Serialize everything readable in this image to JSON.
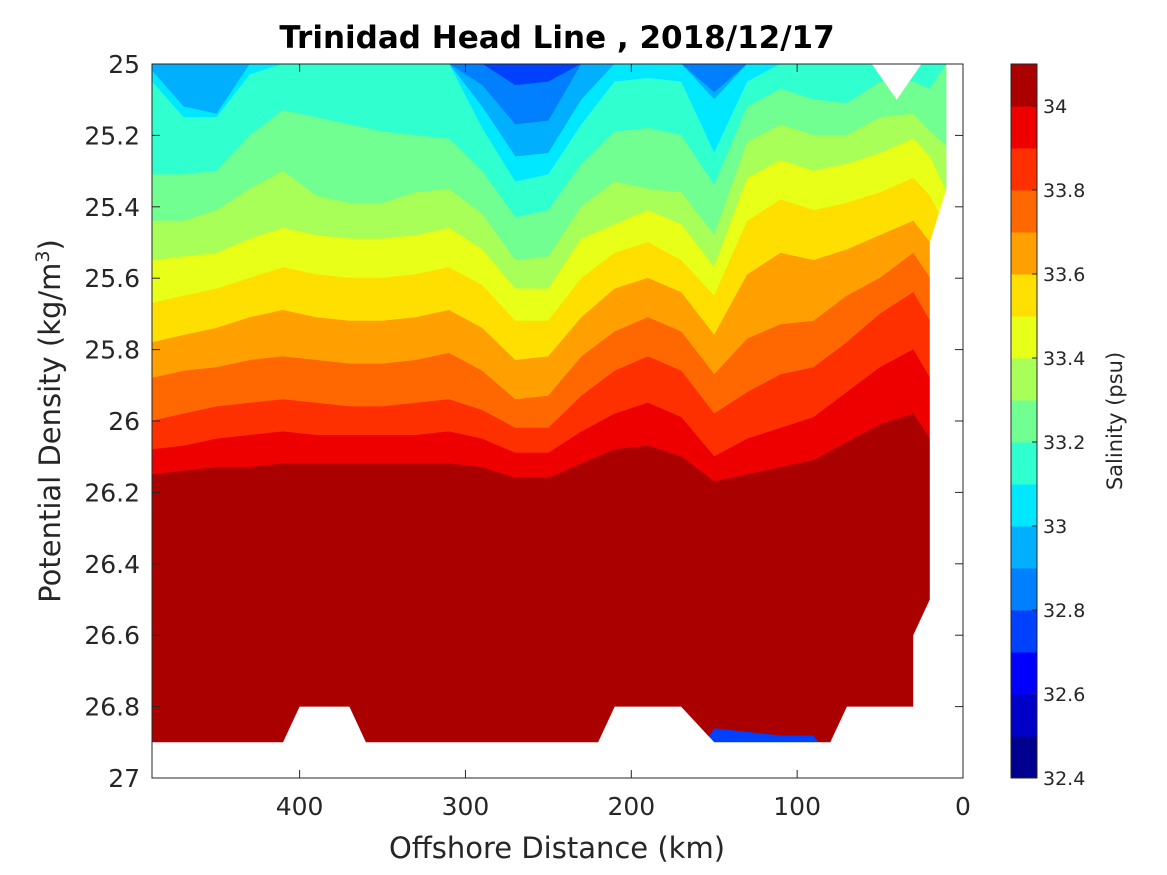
{
  "chart_data": {
    "type": "filled-contour",
    "title": "Trinidad Head Line , 2018/12/17",
    "xlabel": "Offshore Distance (km)",
    "ylabel": "Potential Density (kg/m",
    "ylabel_sup": "3",
    "ylabel_end": ")",
    "colorbar_label": "Salinity (psu)",
    "xlim": [
      489,
      0
    ],
    "ylim": [
      25.0,
      27.0
    ],
    "x_reversed": true,
    "y_reversed": true,
    "x_ticks": [
      400,
      300,
      200,
      100,
      0
    ],
    "x_tick_labels": [
      "400",
      "300",
      "200",
      "100",
      "0"
    ],
    "y_ticks": [
      25.0,
      25.2,
      25.4,
      25.6,
      25.8,
      26.0,
      26.2,
      26.4,
      26.6,
      26.8,
      27.0
    ],
    "y_tick_labels": [
      "25",
      "25.2",
      "25.4",
      "25.6",
      "25.8",
      "26",
      "26.2",
      "26.4",
      "26.6",
      "26.8",
      "27"
    ],
    "colorbar_ticks": [
      32.4,
      32.6,
      32.8,
      33.0,
      33.2,
      33.4,
      33.6,
      33.8,
      34.0
    ],
    "colorbar_tick_labels": [
      "32.4",
      "32.6",
      "32.8",
      "33",
      "33.2",
      "33.4",
      "33.6",
      "33.8",
      "34"
    ],
    "levels": [
      32.4,
      32.5,
      32.6,
      32.7,
      32.8,
      32.9,
      33.0,
      33.1,
      33.2,
      33.3,
      33.4,
      33.5,
      33.6,
      33.7,
      33.8,
      33.9,
      34.0,
      34.1
    ],
    "level_colors": [
      "#00008f",
      "#0000c8",
      "#0000ff",
      "#0040ff",
      "#0080ff",
      "#00b0ff",
      "#00e8ff",
      "#30ffd0",
      "#70ff90",
      "#a8ff58",
      "#e8ff18",
      "#ffdf00",
      "#ffa000",
      "#ff6800",
      "#ff3000",
      "#ee0000",
      "#aa0000"
    ],
    "contours": {
      "x": [
        489,
        470,
        450,
        430,
        410,
        390,
        370,
        350,
        330,
        310,
        290,
        270,
        250,
        230,
        210,
        190,
        170,
        150,
        130,
        110,
        90,
        70,
        50,
        30,
        20,
        10
      ],
      "boundaries": [
        {
          "value": 32.6,
          "depth": [
            25.0,
            25.0,
            25.0,
            25.0,
            25.0,
            25.0,
            25.0,
            25.0,
            25.0,
            25.0,
            25.0,
            25.06,
            25.05,
            25.0,
            25.0,
            25.0,
            25.0,
            25.0,
            25.0,
            25.0,
            25.0,
            25.0,
            25.0,
            25.0,
            25.0,
            25.0
          ]
        },
        {
          "value": 32.7,
          "depth": [
            25.0,
            25.0,
            25.0,
            25.0,
            25.0,
            25.0,
            25.0,
            25.0,
            25.0,
            25.0,
            25.06,
            25.17,
            25.16,
            25.0,
            25.0,
            25.0,
            25.0,
            25.08,
            25.0,
            25.0,
            25.0,
            25.0,
            25.0,
            25.0,
            25.0,
            25.0
          ]
        },
        {
          "value": 32.8,
          "depth": [
            25.02,
            25.12,
            25.14,
            25.0,
            25.0,
            25.0,
            25.0,
            25.0,
            25.0,
            25.0,
            25.12,
            25.26,
            25.25,
            25.1,
            25.0,
            25.0,
            25.0,
            25.1,
            25.0,
            25.0,
            25.0,
            25.0,
            25.0,
            25.0,
            25.0,
            25.0
          ]
        },
        {
          "value": 32.9,
          "depth": [
            25.05,
            25.15,
            25.15,
            25.03,
            25.0,
            25.0,
            25.0,
            25.0,
            25.0,
            25.0,
            25.18,
            25.33,
            25.31,
            25.17,
            25.05,
            25.04,
            25.05,
            25.25,
            25.05,
            25.0,
            25.0,
            25.0,
            25.0,
            25.0,
            25.0,
            25.0
          ]
        },
        {
          "value": 33.0,
          "depth": [
            25.31,
            25.31,
            25.3,
            25.2,
            25.13,
            25.15,
            25.17,
            25.19,
            25.2,
            25.21,
            25.3,
            25.43,
            25.41,
            25.28,
            25.19,
            25.18,
            25.2,
            25.34,
            25.12,
            25.07,
            25.1,
            25.11,
            25.05,
            25.05,
            25.07,
            25.0
          ]
        },
        {
          "value": 33.1,
          "depth": [
            25.44,
            25.44,
            25.41,
            25.35,
            25.3,
            25.37,
            25.39,
            25.39,
            25.36,
            25.35,
            25.42,
            25.55,
            25.54,
            25.4,
            25.33,
            25.35,
            25.36,
            25.48,
            25.22,
            25.17,
            25.2,
            25.2,
            25.15,
            25.14,
            25.19,
            25.23
          ]
        },
        {
          "value": 33.2,
          "depth": [
            25.55,
            25.54,
            25.53,
            25.49,
            25.46,
            25.48,
            25.49,
            25.49,
            25.48,
            25.46,
            25.52,
            25.63,
            25.63,
            25.49,
            25.45,
            25.41,
            25.45,
            25.57,
            25.32,
            25.27,
            25.3,
            25.28,
            25.25,
            25.21,
            25.26,
            25.36
          ]
        },
        {
          "value": 33.3,
          "depth": [
            25.67,
            25.65,
            25.63,
            25.6,
            25.57,
            25.59,
            25.6,
            25.6,
            25.59,
            25.57,
            25.62,
            25.72,
            25.72,
            25.6,
            25.53,
            25.5,
            25.55,
            25.65,
            25.44,
            25.38,
            25.41,
            25.39,
            25.36,
            25.32,
            25.37,
            25.46
          ]
        },
        {
          "value": 33.4,
          "depth": [
            25.78,
            25.76,
            25.74,
            25.71,
            25.69,
            25.71,
            25.72,
            25.72,
            25.71,
            25.69,
            25.74,
            25.83,
            25.82,
            25.71,
            25.63,
            25.6,
            25.64,
            25.76,
            25.59,
            25.53,
            25.55,
            25.52,
            25.48,
            25.44,
            25.5,
            25.58
          ]
        },
        {
          "value": 33.5,
          "depth": [
            25.88,
            25.86,
            25.85,
            25.83,
            25.82,
            25.83,
            25.84,
            25.84,
            25.83,
            25.81,
            25.86,
            25.94,
            25.93,
            25.82,
            25.75,
            25.71,
            25.75,
            25.87,
            25.77,
            25.73,
            25.72,
            25.65,
            25.6,
            25.53,
            25.6,
            25.7
          ]
        },
        {
          "value": 33.6,
          "depth": [
            26.0,
            25.98,
            25.96,
            25.95,
            25.94,
            25.95,
            25.96,
            25.96,
            25.95,
            25.94,
            25.97,
            26.02,
            26.02,
            25.93,
            25.86,
            25.82,
            25.86,
            25.98,
            25.92,
            25.87,
            25.85,
            25.78,
            25.7,
            25.64,
            25.72,
            25.82
          ]
        },
        {
          "value": 33.7,
          "depth": [
            26.08,
            26.07,
            26.05,
            26.04,
            26.03,
            26.04,
            26.04,
            26.04,
            26.04,
            26.03,
            26.05,
            26.09,
            26.09,
            26.03,
            25.98,
            25.95,
            25.99,
            26.1,
            26.05,
            26.02,
            25.99,
            25.92,
            25.85,
            25.8,
            25.88,
            25.98
          ]
        },
        {
          "value": 33.8,
          "depth": [
            26.15,
            26.14,
            26.13,
            26.13,
            26.12,
            26.12,
            26.12,
            26.12,
            26.12,
            26.12,
            26.13,
            26.16,
            26.16,
            26.12,
            26.08,
            26.07,
            26.1,
            26.17,
            26.15,
            26.13,
            26.11,
            26.06,
            26.01,
            25.98,
            26.05,
            26.12
          ]
        },
        {
          "value": 33.9,
          "depth": [
            26.24,
            26.23,
            26.22,
            26.22,
            26.22,
            26.22,
            26.22,
            26.23,
            26.24,
            26.25,
            26.26,
            26.27,
            26.26,
            26.22,
            26.18,
            26.17,
            26.18,
            26.24,
            26.23,
            26.22,
            26.21,
            26.18,
            26.15,
            26.14,
            26.18,
            26.24
          ]
        },
        {
          "value": 34.0,
          "depth": [
            26.38,
            26.35,
            26.36,
            26.34,
            26.36,
            26.37,
            26.37,
            26.38,
            26.39,
            26.4,
            26.4,
            26.41,
            26.42,
            26.36,
            26.3,
            26.28,
            26.29,
            26.34,
            26.35,
            26.34,
            26.33,
            26.32,
            26.32,
            26.32,
            26.35,
            26.4
          ]
        },
        {
          "value": 34.1,
          "depth": [
            26.83,
            26.82,
            26.72,
            26.68,
            26.71,
            26.66,
            26.64,
            26.72,
            26.76,
            26.78,
            26.8,
            26.79,
            26.77,
            26.65,
            26.52,
            26.5,
            26.59,
            26.64,
            26.59,
            26.55,
            26.53,
            26.55,
            26.55,
            26.55,
            26.6,
            26.65
          ]
        },
        {
          "value": 34.2,
          "depth": [
            27.0,
            27.0,
            27.0,
            27.0,
            27.0,
            27.0,
            27.0,
            27.0,
            27.0,
            27.0,
            27.0,
            27.0,
            27.0,
            27.0,
            27.0,
            27.0,
            27.0,
            26.86,
            26.87,
            26.88,
            26.88,
            27.0,
            27.0,
            27.0,
            27.0,
            27.0
          ]
        }
      ]
    },
    "mask_color": "#ffffff",
    "data_bottom": [
      [
        489,
        26.9
      ],
      [
        410,
        26.9
      ],
      [
        400,
        26.8
      ],
      [
        370,
        26.8
      ],
      [
        360,
        26.9
      ],
      [
        220,
        26.9
      ],
      [
        210,
        26.8
      ],
      [
        170,
        26.8
      ],
      [
        150,
        26.9
      ],
      [
        80,
        26.9
      ],
      [
        70,
        26.8
      ],
      [
        30,
        26.8
      ],
      [
        30,
        26.6
      ],
      [
        20,
        26.5
      ],
      [
        20,
        25.5
      ],
      [
        10,
        25.35
      ],
      [
        10,
        25.0
      ]
    ],
    "top_notch": [
      [
        55,
        25.0
      ],
      [
        40,
        25.1
      ],
      [
        25,
        25.0
      ]
    ]
  }
}
